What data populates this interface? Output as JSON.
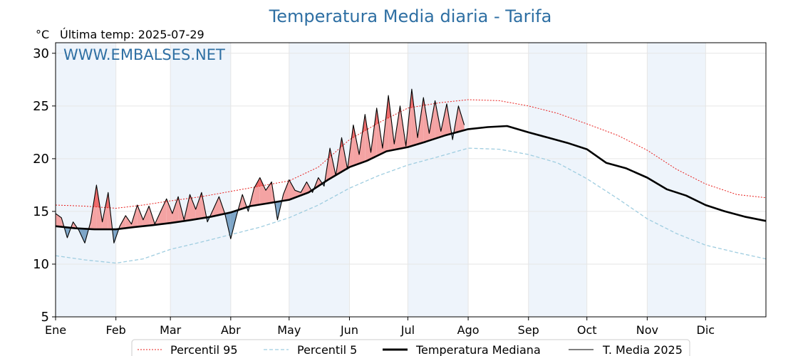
{
  "chart_data": {
    "type": "line",
    "title": "Temperatura Media diaria - Tarifa",
    "unit": "°C",
    "last_reading_label": "Última temp: 2025-07-29",
    "watermark": "WWW.EMBALSES.NET",
    "ylim": [
      5,
      31
    ],
    "yticks": [
      5,
      10,
      15,
      20,
      25,
      30
    ],
    "xlim": [
      0,
      365
    ],
    "months": [
      "Ene",
      "Feb",
      "Mar",
      "Abr",
      "May",
      "Jun",
      "Jul",
      "Ago",
      "Sep",
      "Oct",
      "Nov",
      "Dic"
    ],
    "month_start_day": [
      0,
      31,
      59,
      90,
      120,
      151,
      181,
      212,
      243,
      273,
      304,
      334
    ],
    "grid": true,
    "legend_position": "bottom",
    "colors": {
      "p95": "#e8201e",
      "p5": "#9fcde0",
      "median": "#000000",
      "current": "#000000",
      "above_fill": "#f4a3a3",
      "above_p95_fill": "#ee6a6a",
      "below_fill": "#7ea6c8",
      "band_fill": "#eef4fb",
      "title": "#2e6fa3"
    },
    "series": [
      {
        "key": "p95",
        "name": "Percentil 95",
        "x": [
          0,
          15,
          31,
          45,
          59,
          75,
          90,
          105,
          120,
          135,
          151,
          166,
          181,
          197,
          212,
          228,
          243,
          258,
          273,
          289,
          304,
          319,
          334,
          350,
          365
        ],
        "values": [
          15.6,
          15.5,
          15.3,
          15.6,
          16.0,
          16.4,
          16.9,
          17.4,
          17.9,
          19.2,
          21.8,
          23.4,
          24.8,
          25.3,
          25.6,
          25.5,
          25.0,
          24.3,
          23.3,
          22.2,
          20.8,
          19.0,
          17.6,
          16.6,
          16.3
        ]
      },
      {
        "key": "p5",
        "name": "Percentil 5",
        "x": [
          0,
          15,
          31,
          45,
          59,
          75,
          90,
          105,
          120,
          135,
          151,
          166,
          181,
          197,
          212,
          228,
          243,
          258,
          273,
          289,
          304,
          319,
          334,
          350,
          365
        ],
        "values": [
          10.8,
          10.4,
          10.1,
          10.5,
          11.4,
          12.1,
          12.8,
          13.5,
          14.4,
          15.6,
          17.2,
          18.4,
          19.4,
          20.2,
          21.0,
          20.9,
          20.4,
          19.6,
          18.1,
          16.2,
          14.3,
          12.9,
          11.8,
          11.1,
          10.5
        ]
      },
      {
        "key": "median",
        "name": "Temperatura Mediana",
        "x": [
          0,
          10,
          20,
          31,
          40,
          50,
          59,
          70,
          80,
          90,
          100,
          110,
          120,
          130,
          140,
          151,
          160,
          170,
          181,
          190,
          200,
          212,
          222,
          232,
          243,
          253,
          263,
          273,
          283,
          293,
          304,
          314,
          324,
          334,
          344,
          354,
          365
        ],
        "values": [
          13.6,
          13.4,
          13.3,
          13.3,
          13.5,
          13.7,
          13.9,
          14.2,
          14.5,
          14.9,
          15.5,
          15.8,
          16.1,
          16.8,
          18.0,
          19.2,
          19.8,
          20.7,
          21.1,
          21.6,
          22.2,
          22.8,
          23.0,
          23.1,
          22.5,
          22.0,
          21.5,
          20.9,
          19.6,
          19.1,
          18.2,
          17.1,
          16.5,
          15.6,
          15.0,
          14.5,
          14.1
        ]
      },
      {
        "key": "current",
        "name": "T. Media 2025",
        "x": [
          0,
          3,
          6,
          9,
          12,
          15,
          18,
          21,
          24,
          27,
          30,
          33,
          36,
          39,
          42,
          45,
          48,
          51,
          54,
          57,
          60,
          63,
          66,
          69,
          72,
          75,
          78,
          81,
          84,
          87,
          90,
          93,
          96,
          99,
          102,
          105,
          108,
          111,
          114,
          117,
          120,
          123,
          126,
          129,
          132,
          135,
          138,
          141,
          144,
          147,
          150,
          153,
          156,
          159,
          162,
          165,
          168,
          171,
          174,
          177,
          180,
          183,
          186,
          189,
          192,
          195,
          198,
          201,
          204,
          207,
          210
        ],
        "values": [
          14.8,
          14.4,
          12.5,
          14.0,
          13.2,
          12.0,
          14.0,
          17.5,
          14.0,
          16.8,
          12.0,
          13.6,
          14.6,
          13.8,
          15.6,
          14.2,
          15.5,
          13.8,
          15.0,
          16.2,
          14.8,
          16.4,
          14.2,
          16.6,
          15.2,
          16.8,
          14.0,
          15.2,
          16.4,
          14.8,
          12.4,
          14.6,
          16.6,
          15.0,
          17.2,
          18.2,
          17.0,
          17.8,
          14.2,
          16.6,
          18.0,
          17.0,
          16.8,
          17.8,
          16.8,
          18.2,
          17.4,
          21.0,
          18.4,
          22.0,
          19.0,
          23.2,
          20.4,
          24.2,
          20.6,
          24.8,
          21.0,
          26.0,
          21.4,
          25.0,
          21.2,
          26.6,
          22.0,
          25.8,
          22.4,
          25.5,
          22.6,
          25.2,
          21.8,
          25.0,
          23.2
        ]
      }
    ]
  }
}
